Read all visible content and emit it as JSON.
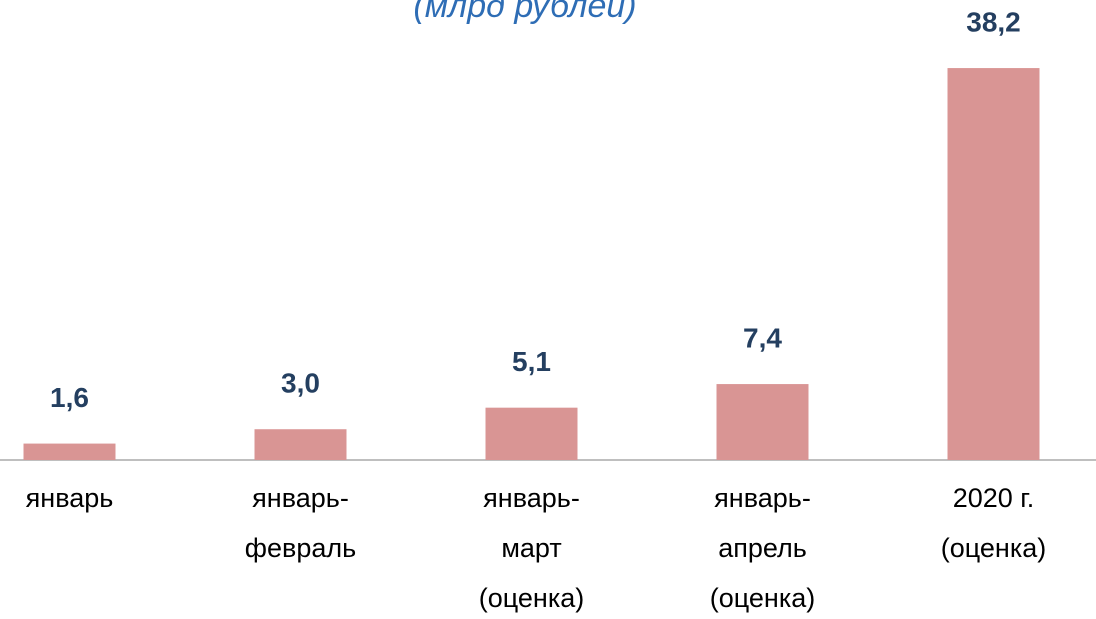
{
  "chart_data": {
    "type": "bar",
    "subtitle": "(млрд рублей)",
    "categories": [
      "январь",
      "январь-\nфевраль",
      "январь-\nмарт\n(оценка)",
      "январь-\nапрель\n(оценка)",
      "2020 г.\n(оценка)"
    ],
    "values": [
      1.6,
      3.0,
      5.1,
      7.4,
      38.2
    ],
    "value_labels": [
      "1,6",
      "3,0",
      "5,1",
      "7,4",
      "38,2"
    ],
    "color": "#d99594"
  }
}
